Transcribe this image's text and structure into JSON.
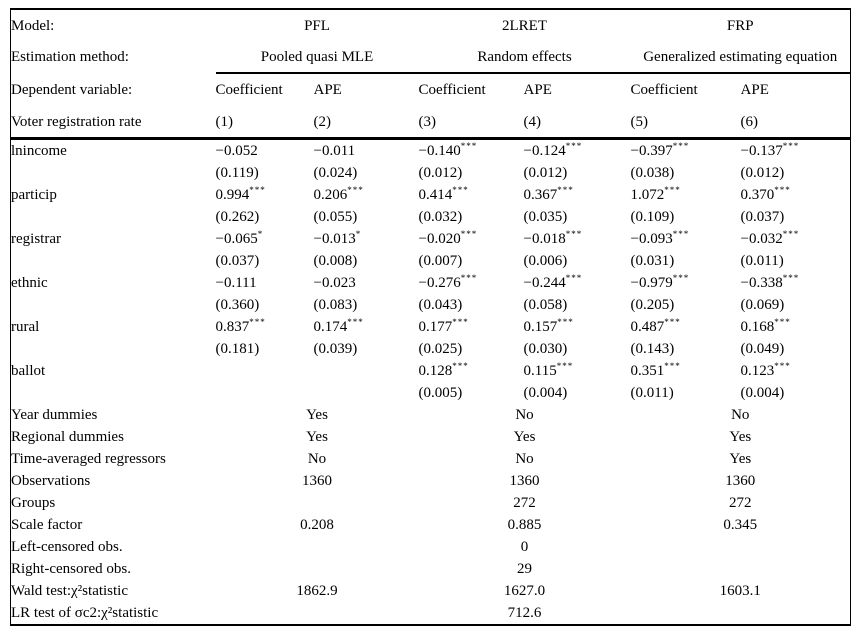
{
  "colors": {
    "text": "#000000",
    "background": "#ffffff",
    "rule": "#000000"
  },
  "table": {
    "header": {
      "model_label": "Model:",
      "models": [
        "PFL",
        "2LRET",
        "FRP"
      ],
      "estimation_label": "Estimation method:",
      "methods": [
        "Pooled quasi MLE",
        "Random effects",
        "Generalized estimating equation"
      ],
      "dependent_label": "Dependent variable:",
      "col_types": [
        "Coefficient",
        "APE",
        "Coefficient",
        "APE",
        "Coefficient",
        "APE"
      ],
      "dependent_name": "Voter registration rate",
      "col_numbers": [
        "(1)",
        "(2)",
        "(3)",
        "(4)",
        "(5)",
        "(6)"
      ]
    },
    "variables": [
      {
        "label": "lnincome",
        "estimates": [
          {
            "v": "−0.052",
            "stars": ""
          },
          {
            "v": "−0.011",
            "stars": ""
          },
          {
            "v": "−0.140",
            "stars": "***"
          },
          {
            "v": "−0.124",
            "stars": "***"
          },
          {
            "v": "−0.397",
            "stars": "***"
          },
          {
            "v": "−0.137",
            "stars": "***"
          }
        ],
        "std_errors": [
          "(0.119)",
          "(0.024)",
          "(0.012)",
          "(0.012)",
          "(0.038)",
          "(0.012)"
        ]
      },
      {
        "label": "particip",
        "estimates": [
          {
            "v": "0.994",
            "stars": "***"
          },
          {
            "v": "0.206",
            "stars": "***"
          },
          {
            "v": "0.414",
            "stars": "***"
          },
          {
            "v": "0.367",
            "stars": "***"
          },
          {
            "v": "1.072",
            "stars": "***"
          },
          {
            "v": "0.370",
            "stars": "***"
          }
        ],
        "std_errors": [
          "(0.262)",
          "(0.055)",
          "(0.032)",
          "(0.035)",
          "(0.109)",
          "(0.037)"
        ]
      },
      {
        "label": "registrar",
        "estimates": [
          {
            "v": "−0.065",
            "stars": "*"
          },
          {
            "v": "−0.013",
            "stars": "*"
          },
          {
            "v": "−0.020",
            "stars": "***"
          },
          {
            "v": "−0.018",
            "stars": "***"
          },
          {
            "v": "−0.093",
            "stars": "***"
          },
          {
            "v": "−0.032",
            "stars": "***"
          }
        ],
        "std_errors": [
          "(0.037)",
          "(0.008)",
          "(0.007)",
          "(0.006)",
          "(0.031)",
          "(0.011)"
        ]
      },
      {
        "label": "ethnic",
        "estimates": [
          {
            "v": "−0.111",
            "stars": ""
          },
          {
            "v": "−0.023",
            "stars": ""
          },
          {
            "v": "−0.276",
            "stars": "***"
          },
          {
            "v": "−0.244",
            "stars": "***"
          },
          {
            "v": "−0.979",
            "stars": "***"
          },
          {
            "v": "−0.338",
            "stars": "***"
          }
        ],
        "std_errors": [
          "(0.360)",
          "(0.083)",
          "(0.043)",
          "(0.058)",
          "(0.205)",
          "(0.069)"
        ]
      },
      {
        "label": "rural",
        "estimates": [
          {
            "v": "0.837",
            "stars": "***"
          },
          {
            "v": "0.174",
            "stars": "***"
          },
          {
            "v": "0.177",
            "stars": "***"
          },
          {
            "v": "0.157",
            "stars": "***"
          },
          {
            "v": "0.487",
            "stars": "***"
          },
          {
            "v": "0.168",
            "stars": "***"
          }
        ],
        "std_errors": [
          "(0.181)",
          "(0.039)",
          "(0.025)",
          "(0.030)",
          "(0.143)",
          "(0.049)"
        ]
      },
      {
        "label": "ballot",
        "estimates": [
          null,
          null,
          {
            "v": "0.128",
            "stars": "***"
          },
          {
            "v": "0.115",
            "stars": "***"
          },
          {
            "v": "0.351",
            "stars": "***"
          },
          {
            "v": "0.123",
            "stars": "***"
          }
        ],
        "std_errors": [
          "",
          "",
          "(0.005)",
          "(0.004)",
          "(0.011)",
          "(0.004)"
        ]
      }
    ],
    "summary": [
      {
        "label": "Year dummies",
        "values": [
          "Yes",
          "No",
          "No"
        ]
      },
      {
        "label": "Regional dummies",
        "values": [
          "Yes",
          "Yes",
          "Yes"
        ]
      },
      {
        "label": "Time-averaged regressors",
        "values": [
          "No",
          "No",
          "Yes"
        ]
      },
      {
        "label": "Observations",
        "values": [
          "1360",
          "1360",
          "1360"
        ]
      },
      {
        "label": "Groups",
        "values": [
          "",
          "272",
          "272"
        ]
      },
      {
        "label": "Scale factor",
        "values": [
          "0.208",
          "0.885",
          "0.345"
        ]
      },
      {
        "label": "Left-censored obs.",
        "values": [
          "",
          "0",
          ""
        ]
      },
      {
        "label": "Right-censored obs.",
        "values": [
          "",
          "29",
          ""
        ]
      },
      {
        "label": "Wald test:χ²statistic",
        "values": [
          "1862.9",
          "1627.0",
          "1603.1"
        ]
      },
      {
        "label": "LR test of σc2:χ²statistic",
        "values": [
          "",
          "712.6",
          ""
        ]
      }
    ]
  }
}
